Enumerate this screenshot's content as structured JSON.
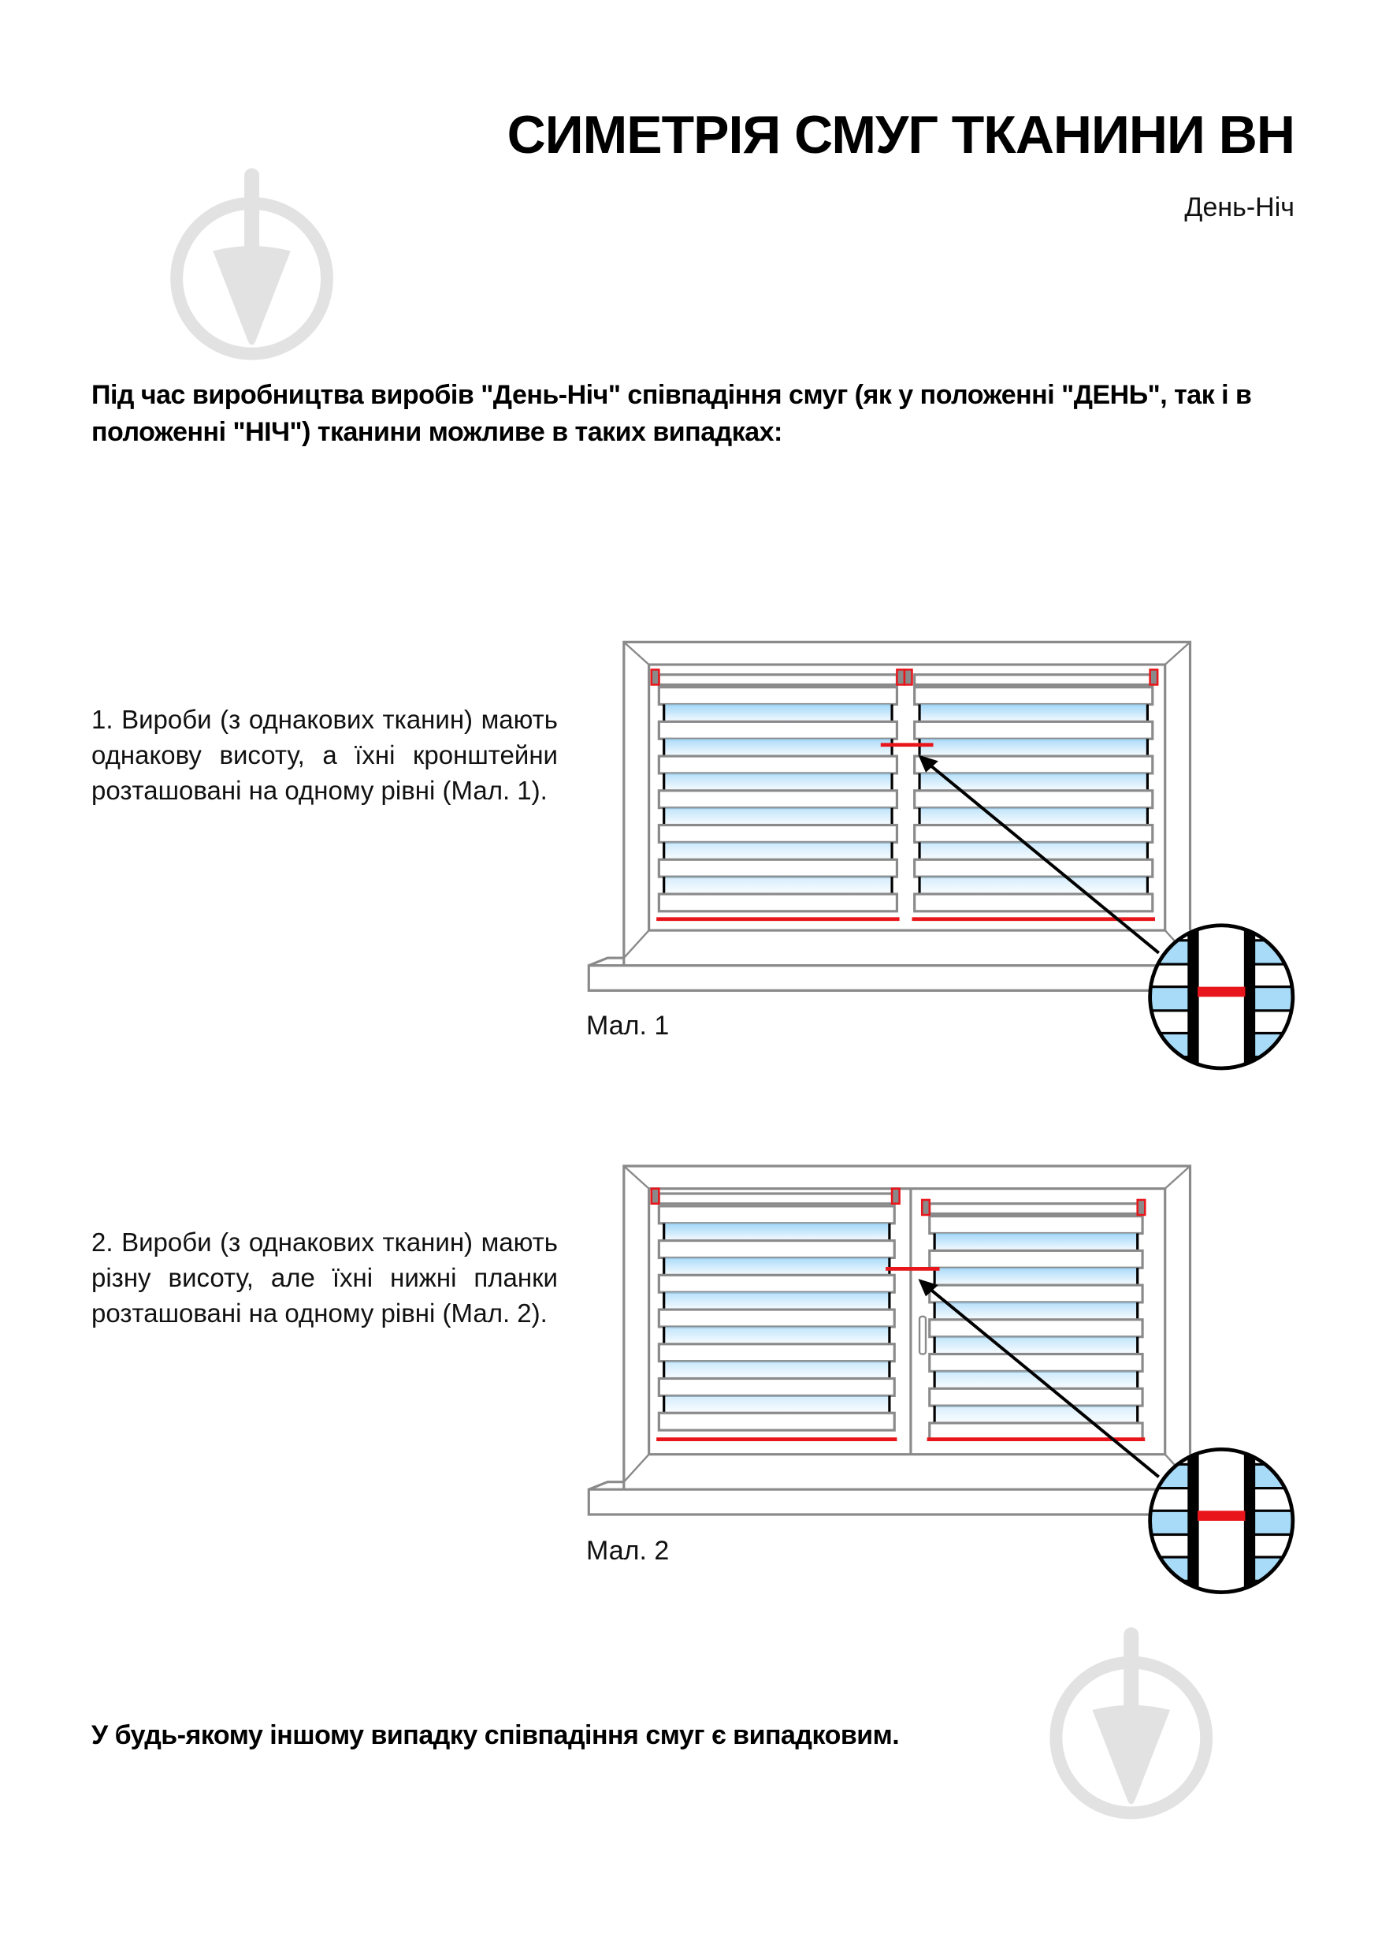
{
  "header": {
    "title": "СИМЕТРІЯ СМУГ ТКАНИНИ ВН",
    "subtitle": "День-Ніч"
  },
  "intro": "Під час виробництва виробів \"День-Ніч\" співпадіння смуг (як у положенні \"ДЕНЬ\", так і в положенні \"НІЧ\") тканини можливе в таких випадках:",
  "cases": [
    {
      "text": "1. Вироби (з однакових тканин) мають однакову висоту, а їхні кронштейни розташовані на одному рівні (Мал. 1).",
      "caption": "Мал. 1"
    },
    {
      "text": "2. Вироби (з однакових тканин) мають різну висоту, але їхні нижні планки розташовані на одному рівні (Мал. 2).",
      "caption": "Мал. 2"
    }
  ],
  "footer": "У будь-якому іншому випадку співпадіння смуг є випадковим.",
  "colors": {
    "marker": "#e8161b",
    "frame": "#8a8a8a",
    "glass": "#99d3f7",
    "watermark": "#e2e2e2"
  },
  "icons": [
    "watermark-logo-icon"
  ]
}
